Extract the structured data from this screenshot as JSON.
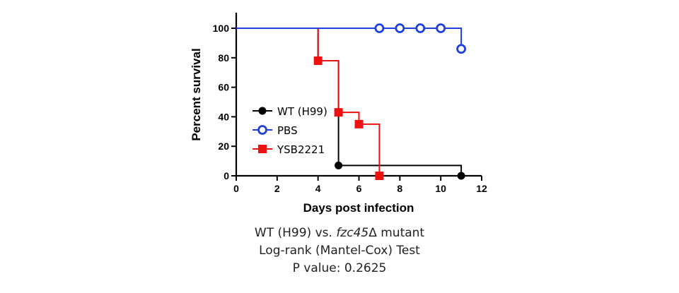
{
  "chart_data": {
    "type": "line",
    "subtype": "kaplan-meier-step",
    "xlabel": "Days post infection",
    "ylabel": "Percent survival",
    "xlim": [
      0,
      12
    ],
    "ylim": [
      0,
      100
    ],
    "xticks": [
      "0",
      "2",
      "4",
      "6",
      "8",
      "10",
      "12"
    ],
    "yticks": [
      "0",
      "20",
      "40",
      "60",
      "80",
      "100"
    ],
    "grid": false,
    "legend_position": "left",
    "series": [
      {
        "name": "WT (H99)",
        "color": "#000000",
        "marker": "filled-circle",
        "steps": [
          [
            0,
            100
          ],
          [
            4,
            100
          ],
          [
            4,
            78
          ],
          [
            5,
            78
          ],
          [
            5,
            7
          ],
          [
            11,
            7
          ],
          [
            11,
            0
          ]
        ],
        "markers": [
          [
            4,
            78
          ],
          [
            5,
            7
          ],
          [
            11,
            0
          ]
        ]
      },
      {
        "name": "PBS",
        "color": "#1f3fe0",
        "marker": "open-circle",
        "steps": [
          [
            0,
            100
          ],
          [
            11,
            100
          ],
          [
            11,
            86
          ]
        ],
        "markers": [
          [
            7,
            100
          ],
          [
            8,
            100
          ],
          [
            9,
            100
          ],
          [
            10,
            100
          ],
          [
            11,
            86
          ]
        ]
      },
      {
        "name": "YSB2221",
        "color": "#ee1111",
        "marker": "filled-square",
        "steps": [
          [
            4,
            100
          ],
          [
            4,
            78
          ],
          [
            5,
            78
          ],
          [
            5,
            43
          ],
          [
            6,
            43
          ],
          [
            6,
            35
          ],
          [
            7,
            35
          ],
          [
            7,
            0
          ]
        ],
        "markers": [
          [
            4,
            78
          ],
          [
            5,
            43
          ],
          [
            6,
            35
          ],
          [
            7,
            0
          ]
        ]
      }
    ]
  },
  "caption": {
    "line1_pre": "WT (H99) vs. ",
    "line1_italic": "fzc45",
    "line1_post": "Δ mutant",
    "line2": "Log-rank (Mantel-Cox) Test",
    "line3": "P value: 0.2625"
  }
}
